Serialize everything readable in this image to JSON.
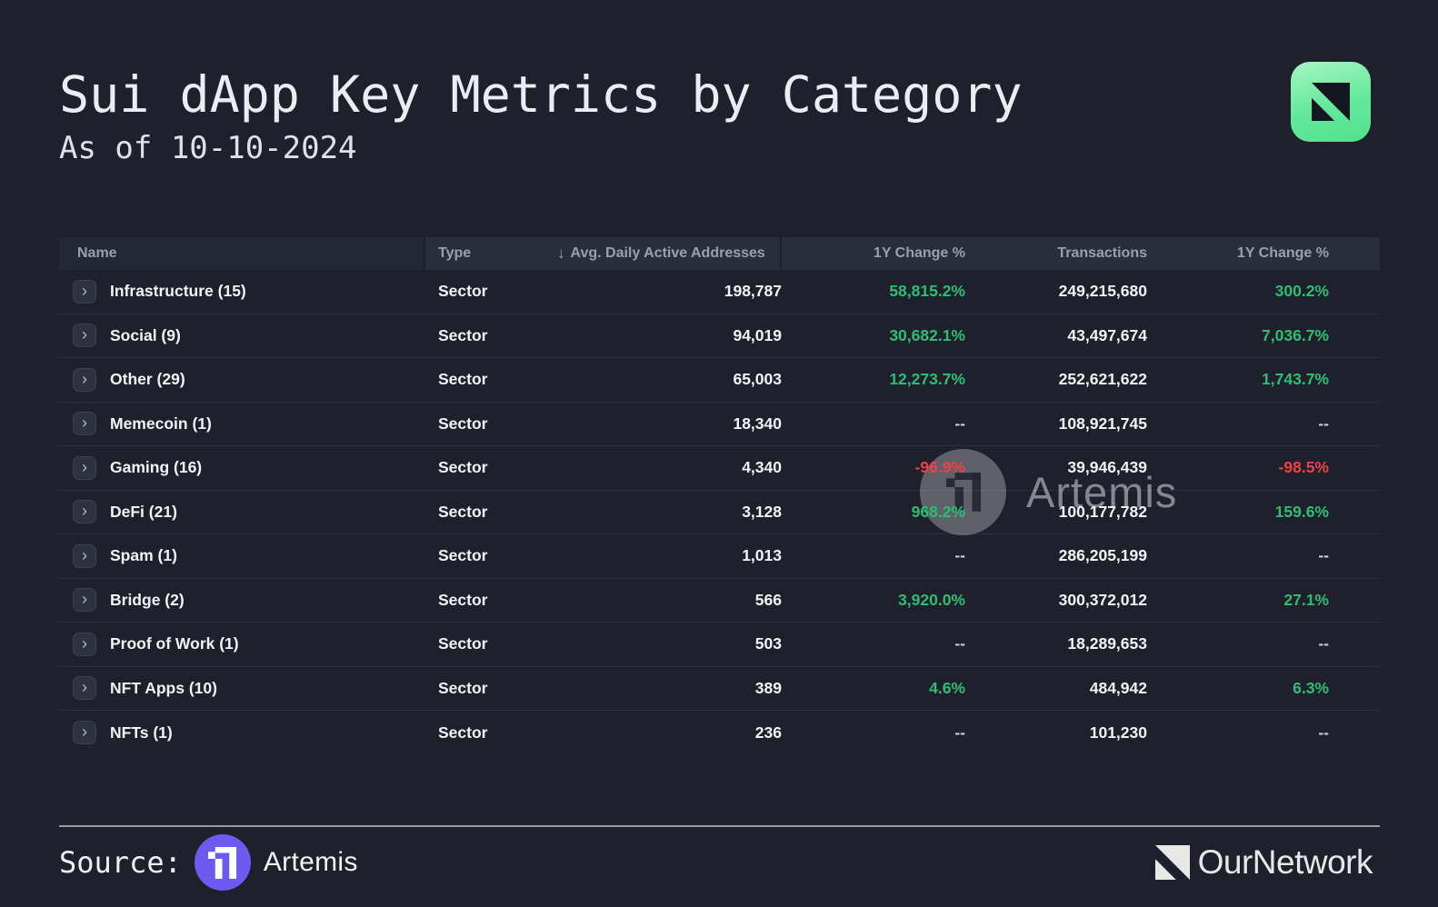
{
  "page": {
    "title": "Sui dApp Key Metrics by Category",
    "subtitle": "As of 10-10-2024"
  },
  "table": {
    "sort_indicator": "↓",
    "columns": [
      {
        "label": "Name"
      },
      {
        "label": "Type"
      },
      {
        "label": "Avg. Daily Active Addresses",
        "sorted": "desc"
      },
      {
        "label": "1Y Change %"
      },
      {
        "label": "Transactions"
      },
      {
        "label": "1Y Change %"
      }
    ],
    "rows": [
      {
        "name": "Infrastructure (15)",
        "type": "Sector",
        "adaa": "198,787",
        "change_addresses": {
          "text": "58,815.2%",
          "dir": "up"
        },
        "transactions": "249,215,680",
        "change_transactions": {
          "text": "300.2%",
          "dir": "up"
        }
      },
      {
        "name": "Social (9)",
        "type": "Sector",
        "adaa": "94,019",
        "change_addresses": {
          "text": "30,682.1%",
          "dir": "up"
        },
        "transactions": "43,497,674",
        "change_transactions": {
          "text": "7,036.7%",
          "dir": "up"
        }
      },
      {
        "name": "Other (29)",
        "type": "Sector",
        "adaa": "65,003",
        "change_addresses": {
          "text": "12,273.7%",
          "dir": "up"
        },
        "transactions": "252,621,622",
        "change_transactions": {
          "text": "1,743.7%",
          "dir": "up"
        }
      },
      {
        "name": "Memecoin (1)",
        "type": "Sector",
        "adaa": "18,340",
        "change_addresses": {
          "text": "--",
          "dir": "na"
        },
        "transactions": "108,921,745",
        "change_transactions": {
          "text": "--",
          "dir": "na"
        }
      },
      {
        "name": "Gaming (16)",
        "type": "Sector",
        "adaa": "4,340",
        "change_addresses": {
          "text": "-96.9%",
          "dir": "down"
        },
        "transactions": "39,946,439",
        "change_transactions": {
          "text": "-98.5%",
          "dir": "down"
        }
      },
      {
        "name": "DeFi (21)",
        "type": "Sector",
        "adaa": "3,128",
        "change_addresses": {
          "text": "968.2%",
          "dir": "up"
        },
        "transactions": "100,177,782",
        "change_transactions": {
          "text": "159.6%",
          "dir": "up"
        }
      },
      {
        "name": "Spam (1)",
        "type": "Sector",
        "adaa": "1,013",
        "change_addresses": {
          "text": "--",
          "dir": "na"
        },
        "transactions": "286,205,199",
        "change_transactions": {
          "text": "--",
          "dir": "na"
        }
      },
      {
        "name": "Bridge (2)",
        "type": "Sector",
        "adaa": "566",
        "change_addresses": {
          "text": "3,920.0%",
          "dir": "up"
        },
        "transactions": "300,372,012",
        "change_transactions": {
          "text": "27.1%",
          "dir": "up"
        }
      },
      {
        "name": "Proof of Work (1)",
        "type": "Sector",
        "adaa": "503",
        "change_addresses": {
          "text": "--",
          "dir": "na"
        },
        "transactions": "18,289,653",
        "change_transactions": {
          "text": "--",
          "dir": "na"
        }
      },
      {
        "name": "NFT Apps (10)",
        "type": "Sector",
        "adaa": "389",
        "change_addresses": {
          "text": "4.6%",
          "dir": "up"
        },
        "transactions": "484,942",
        "change_transactions": {
          "text": "6.3%",
          "dir": "up"
        }
      },
      {
        "name": "NFTs (1)",
        "type": "Sector",
        "adaa": "236",
        "change_addresses": {
          "text": "--",
          "dir": "na"
        },
        "transactions": "101,230",
        "change_transactions": {
          "text": "--",
          "dir": "na"
        }
      }
    ]
  },
  "watermark": {
    "name": "Artemis"
  },
  "footer": {
    "source_label": "Source:",
    "source_name": "Artemis",
    "brand_name": "OurNetwork"
  },
  "colors": {
    "background": "#1e212c",
    "positive": "#2dbd74",
    "negative": "#ee4145",
    "neutral_dash": "#c7ccd3",
    "accent_purple": "#6e5af0",
    "icon_green_top": "#a7f6c4",
    "icon_green_bottom": "#52e18c"
  },
  "chart_data": {
    "type": "table",
    "title": "Sui dApp Key Metrics by Category",
    "subtitle": "As of 10-10-2024",
    "columns": [
      "Name",
      "Type",
      "Avg. Daily Active Addresses",
      "1Y Change %",
      "Transactions",
      "1Y Change %"
    ],
    "rows": [
      [
        "Infrastructure (15)",
        "Sector",
        "198,787",
        "58,815.2%",
        "249,215,680",
        "300.2%"
      ],
      [
        "Social (9)",
        "Sector",
        "94,019",
        "30,682.1%",
        "43,497,674",
        "7,036.7%"
      ],
      [
        "Other (29)",
        "Sector",
        "65,003",
        "12,273.7%",
        "252,621,622",
        "1,743.7%"
      ],
      [
        "Memecoin (1)",
        "Sector",
        "18,340",
        "--",
        "108,921,745",
        "--"
      ],
      [
        "Gaming (16)",
        "Sector",
        "4,340",
        "-96.9%",
        "39,946,439",
        "-98.5%"
      ],
      [
        "DeFi (21)",
        "Sector",
        "3,128",
        "968.2%",
        "100,177,782",
        "159.6%"
      ],
      [
        "Spam (1)",
        "Sector",
        "1,013",
        "--",
        "286,205,199",
        "--"
      ],
      [
        "Bridge (2)",
        "Sector",
        "566",
        "3,920.0%",
        "300,372,012",
        "27.1%"
      ],
      [
        "Proof of Work (1)",
        "Sector",
        "503",
        "--",
        "18,289,653",
        "--"
      ],
      [
        "NFT Apps (10)",
        "Sector",
        "389",
        "4.6%",
        "484,942",
        "6.3%"
      ],
      [
        "NFTs (1)",
        "Sector",
        "236",
        "--",
        "101,230",
        "--"
      ]
    ],
    "sort": {
      "column": "Avg. Daily Active Addresses",
      "direction": "desc"
    }
  }
}
